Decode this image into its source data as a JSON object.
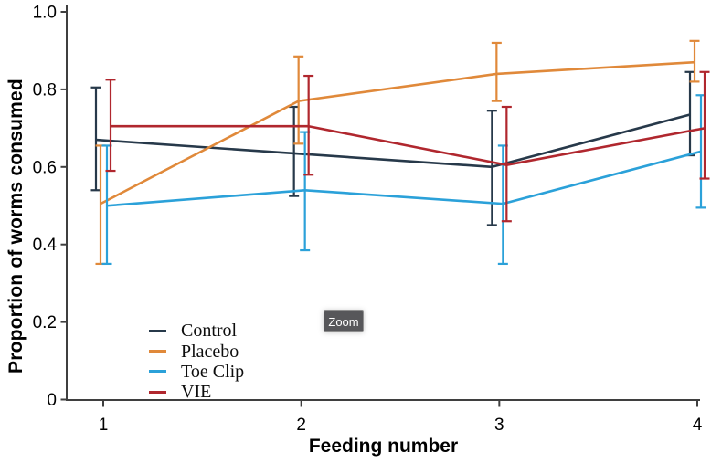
{
  "page": {
    "background": "#ffffff"
  },
  "tooltip": {
    "label": "Zoom"
  },
  "chart_data": {
    "type": "line",
    "title": "",
    "xlabel": "Feeding number",
    "ylabel": "Proportion of worms consumed",
    "x": [
      1,
      2,
      3,
      4
    ],
    "x_tick_labels": [
      "1",
      "2",
      "3",
      "4"
    ],
    "y_ticks": [
      0,
      0.2,
      0.4,
      0.6,
      0.8,
      1.0
    ],
    "y_tick_labels": [
      "0",
      "0.2",
      "0.4",
      "0.6",
      "0.8",
      "1.0"
    ],
    "ylim": [
      0,
      1.0
    ],
    "grid": false,
    "error_bars": true,
    "legend_position": "inside-bottom-left",
    "axis_color": "#3f3f3f",
    "series": [
      {
        "name": "Control",
        "color": "#27394a",
        "values": [
          0.67,
          0.635,
          0.6,
          0.735
        ],
        "err_low": [
          0.54,
          0.525,
          0.45,
          0.63
        ],
        "err_high": [
          0.805,
          0.755,
          0.745,
          0.845
        ]
      },
      {
        "name": "Placebo",
        "color": "#e0893a",
        "values": [
          0.505,
          0.77,
          0.84,
          0.87
        ],
        "err_low": [
          0.35,
          0.66,
          0.77,
          0.82
        ],
        "err_high": [
          0.655,
          0.885,
          0.92,
          0.925
        ]
      },
      {
        "name": "Toe Clip",
        "color": "#2ba1d9",
        "values": [
          0.5,
          0.54,
          0.505,
          0.64
        ],
        "err_low": [
          0.35,
          0.385,
          0.35,
          0.495
        ],
        "err_high": [
          0.655,
          0.69,
          0.655,
          0.785
        ]
      },
      {
        "name": "VIE",
        "color": "#b0272e",
        "values": [
          0.705,
          0.705,
          0.605,
          0.7
        ],
        "err_low": [
          0.59,
          0.58,
          0.46,
          0.57
        ],
        "err_high": [
          0.825,
          0.835,
          0.755,
          0.845
        ]
      }
    ]
  }
}
